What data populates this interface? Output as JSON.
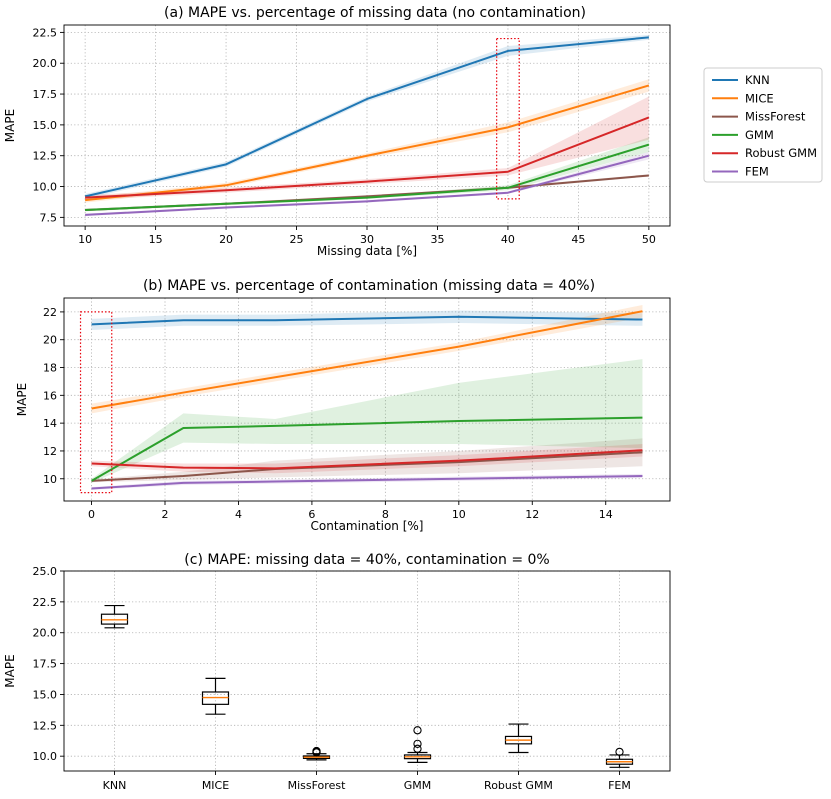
{
  "chart_data": [
    {
      "type": "line",
      "title": "(a) MAPE vs. percentage of missing data (no contamination)",
      "xlabel": "Missing data [%]",
      "ylabel": "MAPE",
      "xlim": [
        8.5,
        51.5
      ],
      "ylim": [
        6.8,
        23.1
      ],
      "xticks": [
        10,
        15,
        20,
        25,
        30,
        35,
        40,
        45,
        50
      ],
      "yticks": [
        7.5,
        10.0,
        12.5,
        15.0,
        17.5,
        20.0,
        22.5
      ],
      "ytick_labels": [
        "7.5",
        "10.0",
        "12.5",
        "15.0",
        "17.5",
        "20.0",
        "22.5"
      ],
      "grid": true,
      "legend_position": "right, outside",
      "highlight_box": {
        "x": [
          39.2,
          40.8
        ],
        "y": [
          9.0,
          22.0
        ]
      },
      "x": [
        10,
        20,
        30,
        40,
        50
      ],
      "series": [
        {
          "name": "KNN",
          "color": "#1f77b4",
          "values": [
            9.2,
            11.8,
            17.1,
            21.0,
            22.1
          ],
          "lower": [
            9.0,
            11.6,
            16.9,
            20.6,
            21.9
          ],
          "upper": [
            9.4,
            12.0,
            17.3,
            21.4,
            22.3
          ]
        },
        {
          "name": "MICE",
          "color": "#ff7f0e",
          "values": [
            8.9,
            10.1,
            12.5,
            14.8,
            18.2
          ],
          "lower": [
            8.7,
            9.9,
            12.3,
            14.4,
            17.7
          ],
          "upper": [
            9.1,
            10.3,
            12.7,
            15.2,
            18.7
          ]
        },
        {
          "name": "MissForest",
          "color": "#8c564b",
          "values": [
            8.1,
            8.6,
            9.2,
            9.9,
            10.9
          ],
          "lower": [
            8.0,
            8.5,
            9.1,
            9.8,
            10.8
          ],
          "upper": [
            8.2,
            8.7,
            9.3,
            10.0,
            11.0
          ]
        },
        {
          "name": "GMM",
          "color": "#2ca02c",
          "values": [
            8.1,
            8.6,
            9.1,
            9.9,
            13.4
          ],
          "lower": [
            8.0,
            8.5,
            9.0,
            9.7,
            12.8
          ],
          "upper": [
            8.2,
            8.7,
            9.2,
            10.1,
            14.0
          ]
        },
        {
          "name": "Robust GMM",
          "color": "#d62728",
          "values": [
            9.1,
            9.7,
            10.4,
            11.2,
            15.6
          ],
          "lower": [
            8.9,
            9.5,
            10.2,
            10.9,
            13.8
          ],
          "upper": [
            9.3,
            9.9,
            10.6,
            11.5,
            17.3
          ]
        },
        {
          "name": "FEM",
          "color": "#9467bd",
          "values": [
            7.7,
            8.3,
            8.8,
            9.5,
            12.5
          ],
          "lower": [
            7.6,
            8.2,
            8.7,
            9.4,
            12.2
          ],
          "upper": [
            7.8,
            8.4,
            8.9,
            9.6,
            12.8
          ]
        }
      ]
    },
    {
      "type": "line",
      "title": "(b) MAPE vs. percentage of contamination (missing data = 40%)",
      "xlabel": "Contamination [%]",
      "ylabel": "MAPE",
      "xlim": [
        -0.75,
        15.75
      ],
      "ylim": [
        8.4,
        23.0
      ],
      "xticks": [
        0,
        2,
        4,
        6,
        8,
        10,
        12,
        14
      ],
      "yticks": [
        10,
        12,
        14,
        16,
        18,
        20,
        22
      ],
      "ytick_labels": [
        "10",
        "12",
        "14",
        "16",
        "18",
        "20",
        "22"
      ],
      "grid": true,
      "highlight_box": {
        "x": [
          -0.3,
          0.55
        ],
        "y": [
          9.0,
          22.0
        ]
      },
      "x": [
        0,
        2.5,
        5,
        10,
        15
      ],
      "series": [
        {
          "name": "KNN",
          "color": "#1f77b4",
          "values": [
            21.1,
            21.4,
            21.4,
            21.65,
            21.45
          ],
          "lower": [
            20.7,
            21.0,
            21.0,
            21.2,
            21.0
          ],
          "upper": [
            21.5,
            21.8,
            21.8,
            22.1,
            21.9
          ]
        },
        {
          "name": "MICE",
          "color": "#ff7f0e",
          "values": [
            15.05,
            16.2,
            17.3,
            19.5,
            22.05
          ],
          "lower": [
            14.7,
            15.9,
            17.0,
            19.2,
            21.6
          ],
          "upper": [
            15.4,
            16.5,
            17.6,
            19.8,
            22.5
          ]
        },
        {
          "name": "MissForest",
          "color": "#8c564b",
          "values": [
            9.85,
            10.2,
            10.7,
            11.2,
            11.9
          ],
          "lower": [
            9.75,
            9.9,
            10.1,
            10.4,
            10.9
          ],
          "upper": [
            9.95,
            10.5,
            11.3,
            12.0,
            12.9
          ]
        },
        {
          "name": "GMM",
          "color": "#2ca02c",
          "values": [
            9.85,
            13.65,
            13.8,
            14.15,
            14.4
          ],
          "lower": [
            9.7,
            12.6,
            12.5,
            12.5,
            12.2
          ],
          "upper": [
            10.0,
            14.7,
            14.3,
            16.9,
            18.6
          ]
        },
        {
          "name": "Robust GMM",
          "color": "#d62728",
          "values": [
            11.1,
            10.8,
            10.75,
            11.3,
            12.05
          ],
          "lower": [
            10.9,
            10.5,
            10.4,
            10.9,
            11.6
          ],
          "upper": [
            11.3,
            11.1,
            11.1,
            11.7,
            12.5
          ]
        },
        {
          "name": "FEM",
          "color": "#9467bd",
          "values": [
            9.3,
            9.7,
            9.8,
            10.0,
            10.2
          ],
          "lower": [
            9.2,
            9.55,
            9.65,
            9.85,
            10.05
          ],
          "upper": [
            9.4,
            9.85,
            9.95,
            10.15,
            10.35
          ]
        }
      ]
    },
    {
      "type": "box",
      "title": "(c) MAPE: missing data = 40%, contamination = 0%",
      "xlabel": "",
      "ylabel": "MAPE",
      "ylim": [
        8.8,
        25.0
      ],
      "yticks": [
        10.0,
        12.5,
        15.0,
        17.5,
        20.0,
        22.5,
        25.0
      ],
      "ytick_labels": [
        "10.0",
        "12.5",
        "15.0",
        "17.5",
        "20.0",
        "22.5",
        "25.0"
      ],
      "grid": true,
      "categories": [
        "KNN",
        "MICE",
        "MissForest",
        "GMM",
        "Robust GMM",
        "FEM"
      ],
      "boxes": [
        {
          "whislo": 20.4,
          "q1": 20.7,
          "med": 21.05,
          "q3": 21.5,
          "whishi": 22.2,
          "fliers": []
        },
        {
          "whislo": 13.4,
          "q1": 14.2,
          "med": 14.75,
          "q3": 15.2,
          "whishi": 16.3,
          "fliers": []
        },
        {
          "whislo": 9.7,
          "q1": 9.82,
          "med": 9.92,
          "q3": 10.02,
          "whishi": 10.2,
          "fliers": [
            10.3,
            10.35,
            10.42
          ]
        },
        {
          "whislo": 9.5,
          "q1": 9.8,
          "med": 9.95,
          "q3": 10.1,
          "whishi": 10.3,
          "fliers": [
            10.6,
            11.0,
            12.1
          ]
        },
        {
          "whislo": 10.3,
          "q1": 11.0,
          "med": 11.3,
          "q3": 11.6,
          "whishi": 12.6,
          "fliers": []
        },
        {
          "whislo": 9.1,
          "q1": 9.35,
          "med": 9.55,
          "q3": 9.75,
          "whishi": 10.1,
          "fliers": [
            10.35
          ]
        }
      ],
      "box_edge_color": "#000000",
      "median_color": "#ff7f0e"
    }
  ]
}
